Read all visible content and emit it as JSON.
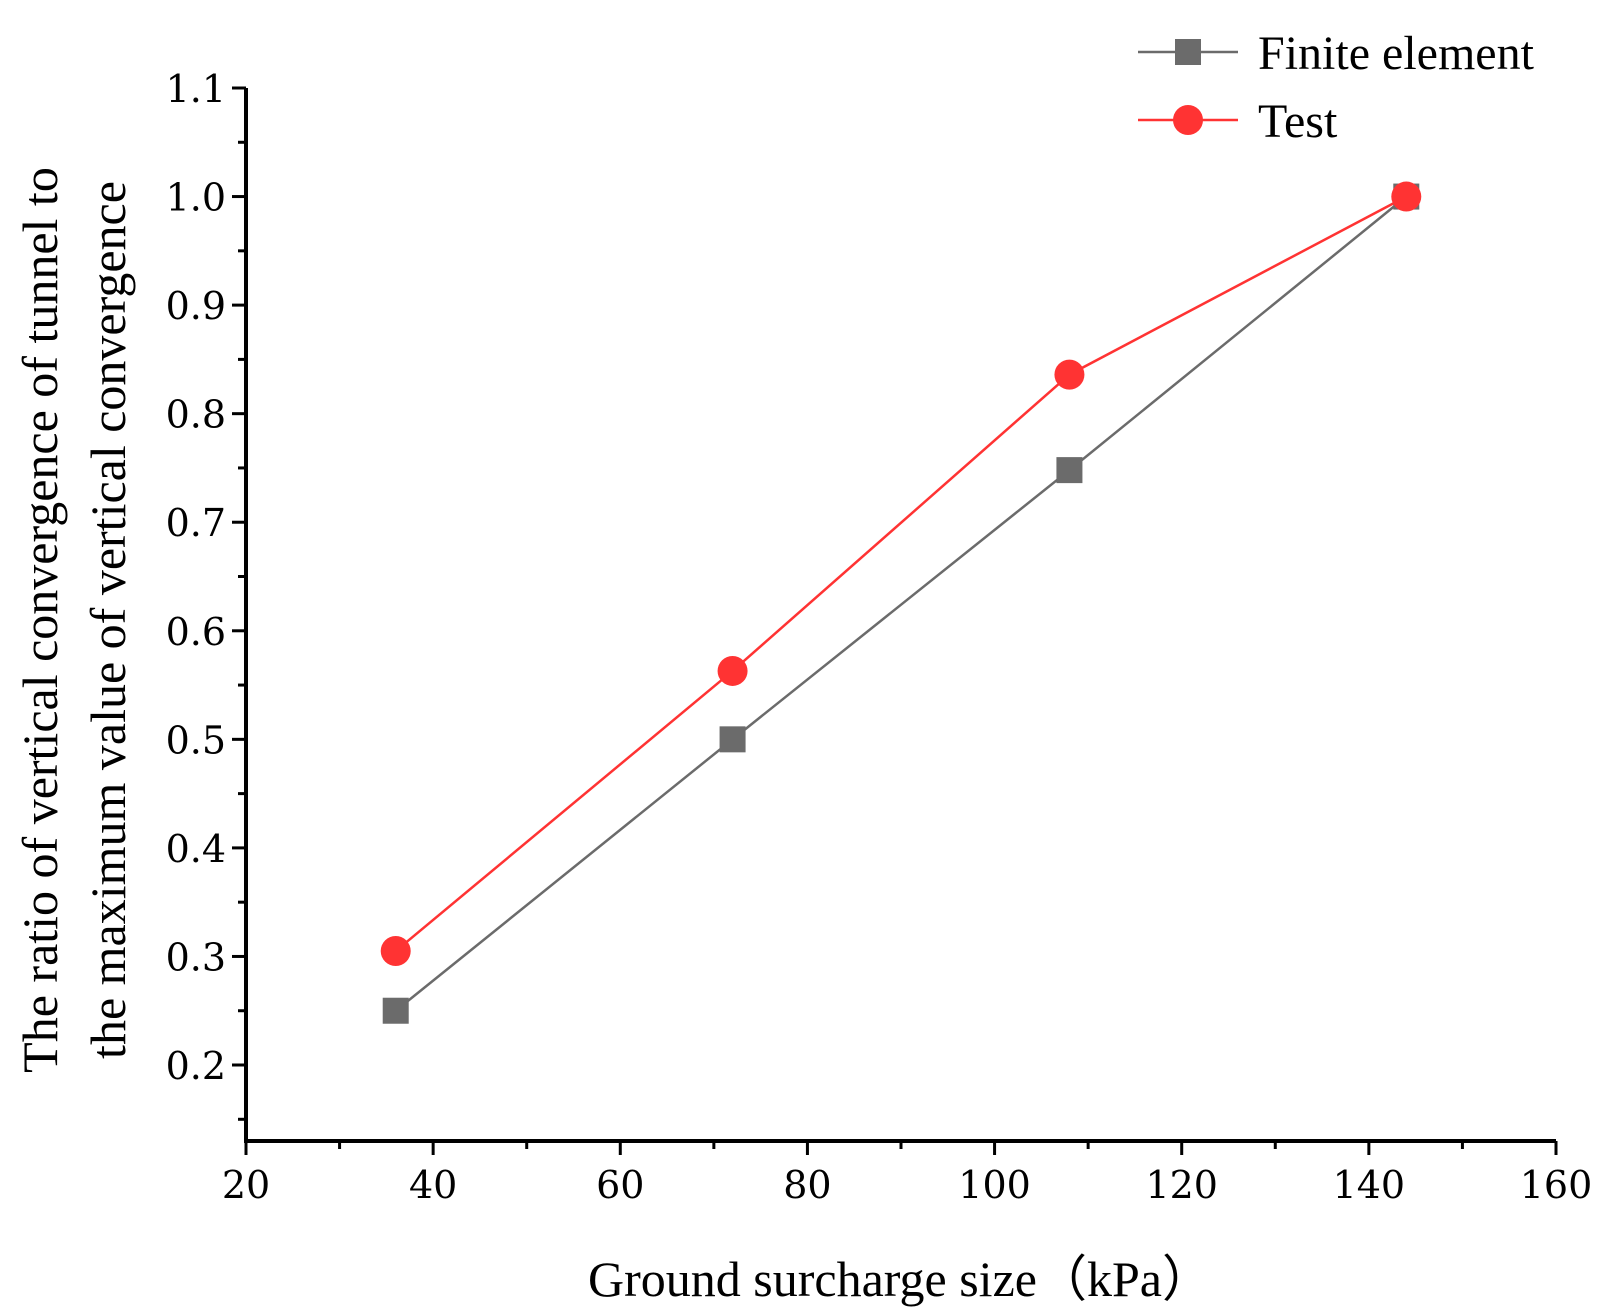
{
  "chart_data": {
    "type": "line",
    "title": "",
    "xlabel": "Ground surcharge size（kPa）",
    "ylabel_lines": [
      "The ratio of vertical convergence of tunnel to",
      "the maximum value of vertical convergence"
    ],
    "xlim": [
      20,
      160
    ],
    "ylim": [
      0.13,
      1.1
    ],
    "x_ticks": [
      20,
      40,
      60,
      80,
      100,
      120,
      140,
      160
    ],
    "x_tick_labels": [
      "20",
      "40",
      "60",
      "80",
      "100",
      "120",
      "140",
      "160"
    ],
    "y_ticks": [
      0.2,
      0.3,
      0.4,
      0.5,
      0.6,
      0.7,
      0.8,
      0.9,
      1.0,
      1.1
    ],
    "y_tick_labels": [
      "0.2",
      "0.3",
      "0.4",
      "0.5",
      "0.6",
      "0.7",
      "0.8",
      "0.9",
      "1.0",
      "1.1"
    ],
    "grid": false,
    "legend_position": "top-right",
    "x": [
      36,
      72,
      108,
      144
    ],
    "series": [
      {
        "name": "Finite element",
        "values": [
          0.25,
          0.5,
          0.748,
          1.0
        ],
        "color": "#6b6b6b",
        "marker": "square"
      },
      {
        "name": "Test",
        "values": [
          0.305,
          0.563,
          0.836,
          1.0
        ],
        "color": "#ff3333",
        "marker": "circle"
      }
    ]
  }
}
